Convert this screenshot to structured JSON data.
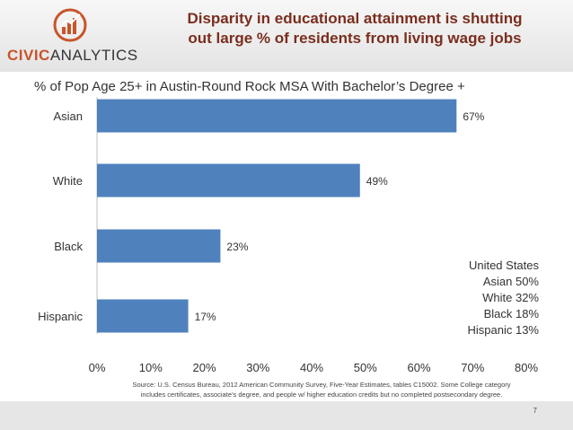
{
  "header": {
    "title_line1": "Disparity in educational attainment is shutting",
    "title_line2": "out large % of residents from living wage jobs"
  },
  "logo": {
    "civic": "CIVIC",
    "analytics": "ANALYTICS"
  },
  "colors": {
    "bar": "#4f81bd",
    "title": "#7a2e1e",
    "logo_accent": "#c8542a"
  },
  "chart_data": {
    "type": "bar",
    "orientation": "horizontal",
    "title": "% of Pop Age 25+ in Austin-Round Rock MSA With Bachelor’s Degree +",
    "categories": [
      "Asian",
      "White",
      "Black",
      "Hispanic"
    ],
    "values": [
      67,
      49,
      23,
      17
    ],
    "data_labels": [
      "67%",
      "49%",
      "23%",
      "17%"
    ],
    "xlim": [
      0,
      80
    ],
    "xticks": [
      0,
      10,
      20,
      30,
      40,
      50,
      60,
      70,
      80
    ],
    "xtick_labels": [
      "0%",
      "10%",
      "20%",
      "30%",
      "40%",
      "50%",
      "60%",
      "70%",
      "80%"
    ],
    "grid": false,
    "legend": "none"
  },
  "us_comparison": {
    "heading": "United States",
    "rows": [
      "Asian 50%",
      "White 32%",
      "Black 18%",
      "Hispanic 13%"
    ]
  },
  "source": {
    "line1": "Source: U.S. Census Bureau, 2012 American Community Survey, Five-Year Estimates, tables C15002. Some College category",
    "line2": "includes certificates, associate’s degree, and people w/ higher education credits but no completed postsecondary degree."
  },
  "page_number": "7"
}
